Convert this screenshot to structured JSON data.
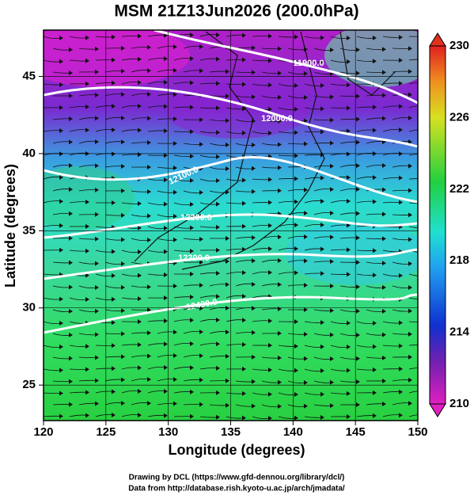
{
  "map": {
    "title": "MSM 21Z13Jun2026 (200.0hPa)",
    "xlabel": "Longitude (degrees)",
    "ylabel": "Latitude  (degrees)",
    "xlim": [
      120,
      150
    ],
    "ylim": [
      22.7,
      48
    ],
    "xticks": [
      120,
      125,
      130,
      135,
      140,
      145,
      150
    ],
    "yticks": [
      25,
      30,
      35,
      40,
      45
    ],
    "colorbar": {
      "lim": [
        210,
        230
      ],
      "ticks": [
        210,
        214,
        218,
        222,
        226,
        230
      ]
    },
    "contours": [
      {
        "value": 11900,
        "label": "11900.0"
      },
      {
        "value": 12000,
        "label": "12000.0"
      },
      {
        "value": 12100,
        "label": "12100.0"
      },
      {
        "value": 12200,
        "label": "12200.0"
      },
      {
        "value": 12300,
        "label": "12300.0"
      },
      {
        "value": 12400,
        "label": "12400.0"
      }
    ],
    "credits": [
      "Drawing by DCL (https://www.gfd-dennou.org/library/dcl/)",
      "Data from http://database.rish.kyoto-u.ac.jp/arch/jmadata/"
    ]
  }
}
